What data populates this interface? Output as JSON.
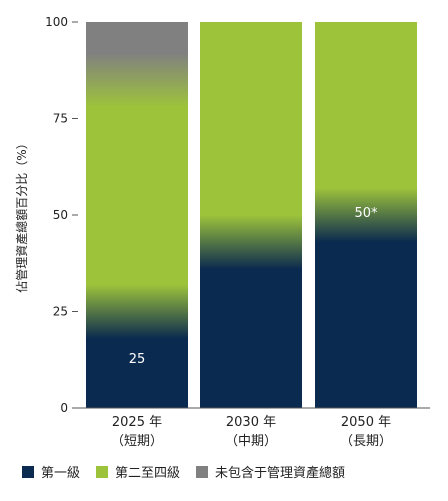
{
  "chart_data": {
    "type": "bar",
    "stacked": true,
    "ylabel": "佔管理資產總額百分比（%）",
    "ylim": [
      0,
      100
    ],
    "yticks": [
      0,
      25,
      50,
      75,
      100
    ],
    "categories": [
      {
        "year": "2025 年",
        "term": "（短期）"
      },
      {
        "year": "2030 年",
        "term": "（中期）"
      },
      {
        "year": "2050 年",
        "term": "（長期）"
      }
    ],
    "series": [
      {
        "name": "第一級",
        "color": "#0b2a4f",
        "values": [
          25,
          43,
          50
        ]
      },
      {
        "name": "第二至四級",
        "color": "#9dc33b",
        "values": [
          60,
          57,
          50
        ]
      },
      {
        "name": "未包含于管理資產總額",
        "color": "#808080",
        "values": [
          15,
          0,
          0
        ]
      }
    ],
    "data_labels": [
      "25",
      "",
      "50*"
    ]
  }
}
